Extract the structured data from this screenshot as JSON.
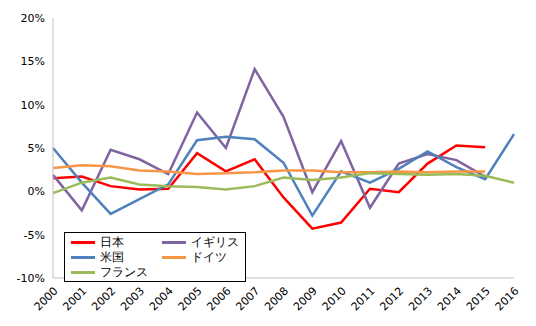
{
  "chart_data": {
    "type": "line",
    "categories": [
      "2000",
      "2001",
      "2002",
      "2003",
      "2004",
      "2005",
      "2006",
      "2007",
      "2008",
      "2009",
      "2010",
      "2011",
      "2012",
      "2013",
      "2014",
      "2015",
      "2016"
    ],
    "series": [
      {
        "name": "日本",
        "color": "#ff0000",
        "values": [
          1.5,
          1.7,
          0.6,
          0.2,
          0.3,
          4.4,
          2.3,
          3.7,
          -0.7,
          -4.3,
          -3.6,
          0.3,
          -0.1,
          3.2,
          5.3,
          5.1,
          null
        ]
      },
      {
        "name": "イギリス",
        "color": "#8064a2",
        "values": [
          1.9,
          -2.2,
          4.8,
          3.7,
          2.0,
          9.1,
          5.0,
          14.1,
          8.6,
          -0.1,
          5.8,
          -1.9,
          3.2,
          4.3,
          3.6,
          1.7,
          null
        ]
      },
      {
        "name": "米国",
        "color": "#4f81bd",
        "values": [
          5.0,
          1.0,
          -2.6,
          -0.9,
          0.8,
          5.9,
          6.3,
          6.0,
          3.3,
          -2.8,
          2.3,
          1.0,
          2.6,
          4.6,
          2.8,
          1.4,
          6.6
        ]
      },
      {
        "name": "ドイツ",
        "color": "#f79646",
        "values": [
          2.7,
          3.0,
          2.9,
          2.4,
          2.3,
          2.0,
          2.1,
          2.2,
          2.4,
          2.4,
          2.2,
          2.2,
          2.3,
          2.2,
          2.3,
          2.3,
          null
        ]
      },
      {
        "name": "フランス",
        "color": "#9bbb59",
        "values": [
          -0.2,
          1.0,
          1.6,
          0.8,
          0.6,
          0.5,
          0.2,
          0.6,
          1.6,
          1.3,
          1.6,
          2.1,
          2.0,
          1.9,
          2.0,
          1.8,
          1.0
        ]
      }
    ],
    "ylim": [
      -10,
      20
    ],
    "yticks": [
      {
        "value": -10,
        "label": "-10%"
      },
      {
        "value": -5,
        "label": "-5%"
      },
      {
        "value": 0,
        "label": "0%"
      },
      {
        "value": 5,
        "label": "5%"
      },
      {
        "value": 10,
        "label": "10%"
      },
      {
        "value": 15,
        "label": "15%"
      },
      {
        "value": 20,
        "label": "20%"
      }
    ],
    "grid": false,
    "legend": "lower left"
  }
}
